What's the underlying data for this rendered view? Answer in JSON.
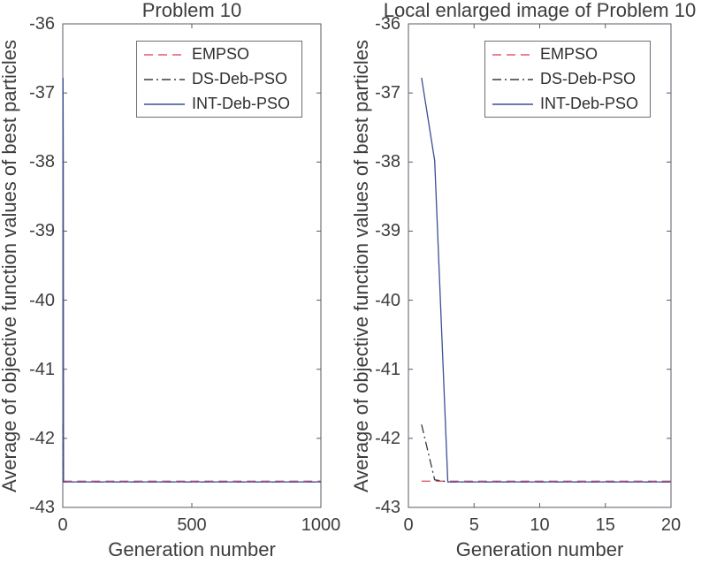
{
  "figure": {
    "background": "#ffffff",
    "text_color": "#3d3d3d",
    "axis_color": "#5a5a64"
  },
  "chart_data": [
    {
      "type": "line",
      "title": "Problem 10",
      "xlabel": "Generation number",
      "ylabel": "Average of objective function values of best particles",
      "xlim": [
        0,
        1000
      ],
      "ylim": [
        -43,
        -36
      ],
      "xticks": [
        0,
        500,
        1000
      ],
      "yticks": [
        -36,
        -37,
        -38,
        -39,
        -40,
        -41,
        -42,
        -43
      ],
      "grid": false,
      "legend_position": "upper-center-inside",
      "series": [
        {
          "name": "EMPSO",
          "style": "dashed",
          "color": "#e8566e",
          "points": [
            [
              1,
              -42.62
            ],
            [
              1000,
              -42.62
            ]
          ]
        },
        {
          "name": "DS-Deb-PSO",
          "style": "dashdot",
          "color": "#3a3a3a",
          "points": [
            [
              1,
              -41.8
            ],
            [
              2,
              -42.6
            ],
            [
              3,
              -42.63
            ],
            [
              1000,
              -42.63
            ]
          ]
        },
        {
          "name": "INT-Deb-PSO",
          "style": "solid",
          "color": "#3a4f97",
          "points": [
            [
              1,
              -36.78
            ],
            [
              2,
              -37.98
            ],
            [
              3,
              -42.63
            ],
            [
              1000,
              -42.63
            ]
          ]
        }
      ]
    },
    {
      "type": "line",
      "title": "Local enlarged image of Problem 10",
      "xlabel": "Generation number",
      "ylabel": "Average of objective function values of best particles",
      "xlim": [
        0,
        20
      ],
      "ylim": [
        -43,
        -36
      ],
      "xticks": [
        0,
        5,
        10,
        15,
        20
      ],
      "yticks": [
        -36,
        -37,
        -38,
        -39,
        -40,
        -41,
        -42,
        -43
      ],
      "grid": false,
      "legend_position": "upper-center-inside",
      "series": [
        {
          "name": "EMPSO",
          "style": "dashed",
          "color": "#e8566e",
          "points": [
            [
              1,
              -42.62
            ],
            [
              20,
              -42.62
            ]
          ]
        },
        {
          "name": "DS-Deb-PSO",
          "style": "dashdot",
          "color": "#3a3a3a",
          "points": [
            [
              1,
              -41.8
            ],
            [
              2,
              -42.6
            ],
            [
              3,
              -42.63
            ],
            [
              20,
              -42.63
            ]
          ]
        },
        {
          "name": "INT-Deb-PSO",
          "style": "solid",
          "color": "#3a4f97",
          "points": [
            [
              1,
              -36.78
            ],
            [
              2,
              -37.98
            ],
            [
              3,
              -42.63
            ],
            [
              20,
              -42.63
            ]
          ]
        }
      ]
    }
  ]
}
